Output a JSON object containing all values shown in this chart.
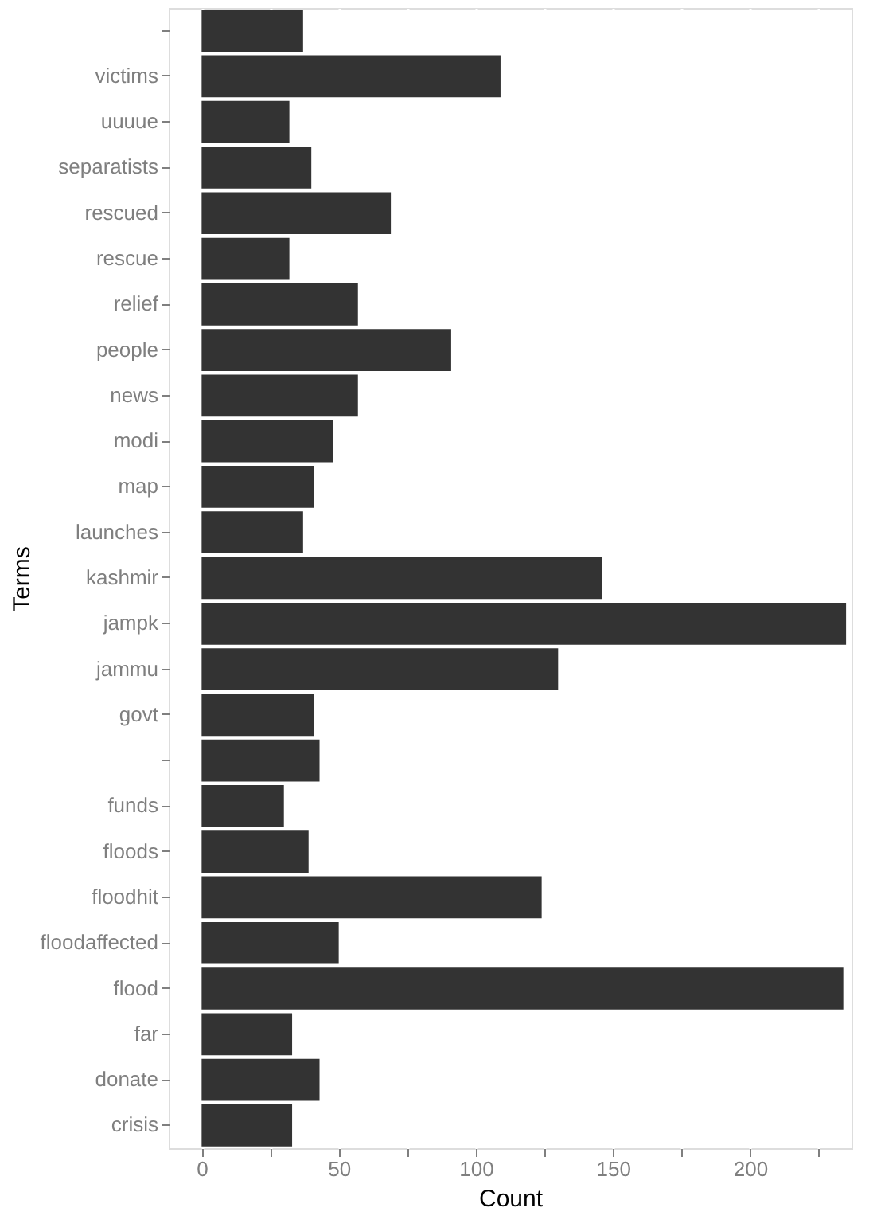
{
  "chart_data": {
    "type": "bar",
    "orientation": "horizontal",
    "xlabel": "Count",
    "ylabel": "Terms",
    "categories": [
      null,
      "victims",
      "uuuue",
      "separatists",
      "rescued",
      "rescue",
      "relief",
      "people",
      "news",
      "modi",
      "map",
      "launches",
      "kashmir",
      "jampk",
      "jammu",
      "govt",
      null,
      "funds",
      "floods",
      "floodhit",
      "floodaffected",
      "flood",
      "far",
      "donate",
      "crisis"
    ],
    "values": [
      37,
      109,
      32,
      40,
      69,
      32,
      57,
      91,
      57,
      48,
      41,
      37,
      146,
      235,
      130,
      41,
      43,
      30,
      39,
      124,
      50,
      234,
      33,
      43,
      33
    ],
    "color": "#333333",
    "xlim": [
      -12,
      237
    ],
    "xticks": [
      0,
      {
        "value": 25,
        "label": null
      },
      50,
      {
        "value": 75,
        "label": null
      },
      100,
      {
        "value": 125,
        "label": null
      },
      150,
      {
        "value": 175,
        "label": null
      },
      200,
      {
        "value": 225,
        "label": null
      }
    ],
    "grid": true
  }
}
